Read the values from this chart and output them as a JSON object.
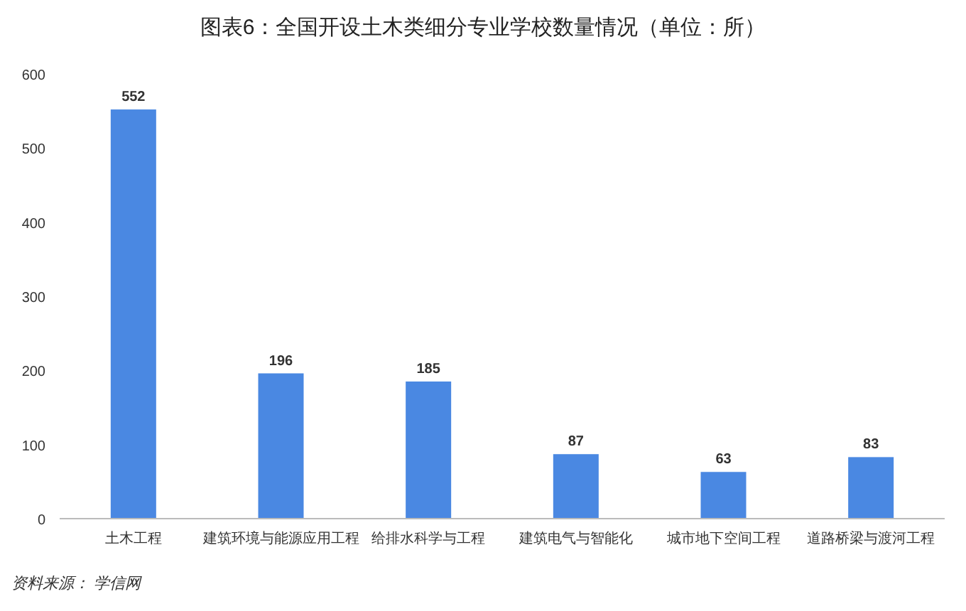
{
  "chart_data": {
    "type": "bar",
    "title": "图表6：全国开设土木类细分专业学校数量情况（单位：所）",
    "categories": [
      "土木工程",
      "建筑环境与能源应用工程",
      "给排水科学与工程",
      "建筑电气与智能化",
      "城市地下空间工程",
      "道路桥梁与渡河工程"
    ],
    "values": [
      552,
      196,
      185,
      87,
      63,
      83
    ],
    "color": "#4a88e2",
    "ylim": [
      0,
      600
    ],
    "yticks": [
      0,
      100,
      200,
      300,
      400,
      500,
      600
    ],
    "grid": false,
    "data_labels": true,
    "annotations": [
      "资料来源： 学信网"
    ]
  }
}
